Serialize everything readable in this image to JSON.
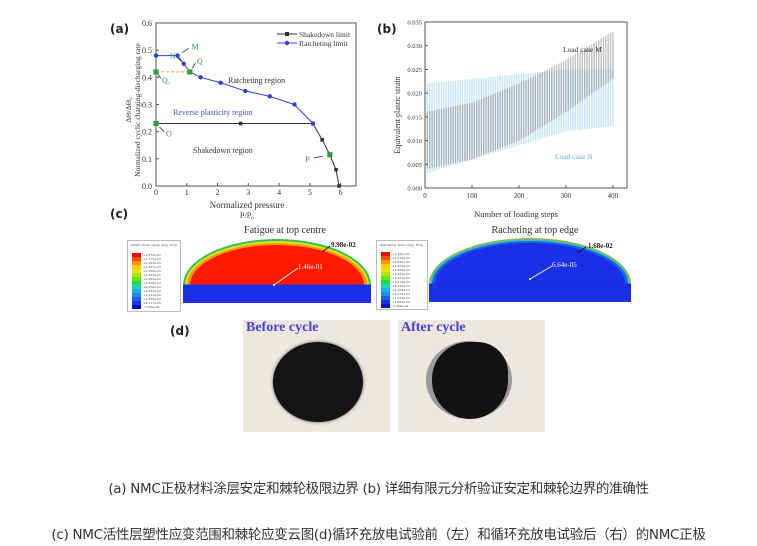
{
  "panels": {
    "a": "(a)",
    "b": "(b)",
    "c": "(c)",
    "d": "(d)"
  },
  "chart_data": [
    {
      "type": "line",
      "panel": "(a)",
      "xlabel": "Normalized pressure",
      "xlabel2": "P/P₀",
      "ylabel": "Normalized cyclic charging-discharging rate",
      "ylabel2": "ΔΘ/ΔΘ₀",
      "xlim": [
        0,
        6.5
      ],
      "ylim": [
        0,
        0.6
      ],
      "xticks": [
        "0",
        "1",
        "2",
        "3",
        "4",
        "5",
        "6"
      ],
      "yticks": [
        "0.0",
        "0.1",
        "0.2",
        "0.3",
        "0.4",
        "0.5",
        "0.6"
      ],
      "legend_position": "top-right",
      "series": [
        {
          "name": "Shakedown limit",
          "color": "#333333",
          "x": [
            0,
            2.75,
            5.1,
            5.4,
            5.65,
            5.85,
            5.95
          ],
          "y": [
            0.23,
            0.23,
            0.23,
            0.17,
            0.115,
            0.06,
            0.0
          ]
        },
        {
          "name": "Ratcheting limit",
          "color": "#2f3fe0",
          "x": [
            0,
            0.7,
            0.9,
            1.1,
            1.45,
            2.1,
            2.9,
            3.7,
            4.5,
            5.1
          ],
          "y": [
            0.48,
            0.48,
            0.45,
            0.42,
            0.4,
            0.38,
            0.35,
            0.33,
            0.3,
            0.23
          ]
        }
      ],
      "special_points": [
        {
          "label": "M",
          "x": 0.7,
          "y": 0.48
        },
        {
          "label": "N",
          "x": 0.9,
          "y": 0.45
        },
        {
          "label": "Q",
          "x": 1.1,
          "y": 0.42
        },
        {
          "label": "Q₁",
          "x": 0,
          "y": 0.42
        },
        {
          "label": "O",
          "x": 0,
          "y": 0.23
        },
        {
          "label": "P",
          "x": 5.65,
          "y": 0.115
        }
      ],
      "regions": [
        "Ratcheting region",
        "Reverse plasticity region",
        "Shakedown region"
      ]
    },
    {
      "type": "area",
      "panel": "(b)",
      "xlabel": "Number of loading steps",
      "ylabel": "Equivalent plastic strain",
      "xlim": [
        0,
        430
      ],
      "ylim": [
        0,
        0.035
      ],
      "xticks": [
        "0",
        "100",
        "200",
        "300",
        "400"
      ],
      "yticks": [
        "0.000",
        "0.005",
        "0.010",
        "0.015",
        "0.020",
        "0.025",
        "0.030",
        "0.035"
      ],
      "series": [
        {
          "name": "Load case M",
          "color": "#7a7a7a",
          "x": [
            0,
            100,
            200,
            300,
            400
          ],
          "lower": [
            0.004,
            0.006,
            0.01,
            0.016,
            0.023
          ],
          "upper": [
            0.016,
            0.018,
            0.022,
            0.027,
            0.033
          ]
        },
        {
          "name": "Load case N",
          "color": "#5fb4ea",
          "x": [
            0,
            100,
            200,
            300,
            400
          ],
          "lower": [
            0.003,
            0.006,
            0.009,
            0.012,
            0.013
          ],
          "upper": [
            0.022,
            0.023,
            0.024,
            0.025,
            0.025
          ]
        }
      ]
    }
  ],
  "panel_c": {
    "left": {
      "title": "Fatigue at top centre",
      "legend_title": "Plastic strain range (Avg: 75%)",
      "legend_values": [
        "+1.875e-01",
        "+1.719e-01",
        "+1.563e-01",
        "+1.407e-01",
        "+1.250e-01",
        "+1.094e-01",
        "+9.380e-02",
        "+7.818e-02",
        "+6.256e-02",
        "+4.694e-02",
        "+3.131e-02",
        "+1.569e-02",
        "+8.117e-05",
        "-1.256e-02"
      ],
      "max_label": "9.98e-02",
      "min_label": "1.46e-01"
    },
    "right": {
      "title": "Racheting at top edge",
      "legend_title": "Ratcheting strain (Avg: 75%)",
      "legend_values": [
        "+2.442e-02",
        "+2.239e-02",
        "+2.035e-02",
        "+1.832e-02",
        "+1.628e-02",
        "+1.425e-02",
        "+1.221e-02",
        "+1.018e-02",
        "+8.142e-03",
        "+6.108e-03",
        "+4.073e-03",
        "+2.039e-03",
        "+3.892e-06",
        "-1.926e-04"
      ],
      "max_label": "1.68e-02",
      "min_label": "6.64e-05"
    }
  },
  "panel_d": {
    "before": "Before cycle",
    "after": "After cycle"
  },
  "captions": {
    "line1": "(a) NMC正极材料涂层安定和棘轮极限边界 (b) 详细有限元分析验证安定和棘轮边界的准确性",
    "line2": "(c) NMC活性层塑性应变范围和棘轮应变云图(d)循环充放电试验前（左）和循环充放电试验后（右）的NMC正极"
  },
  "colors": {
    "ratchet": "#2f3fe0",
    "shakedown": "#333333",
    "marker_green": "#2e9e3a",
    "region_blue": "#4a4ae0",
    "load_n_text": "#5fb4ea",
    "fem_red": "#ff1a00",
    "fem_blue": "#1a2fe6"
  }
}
